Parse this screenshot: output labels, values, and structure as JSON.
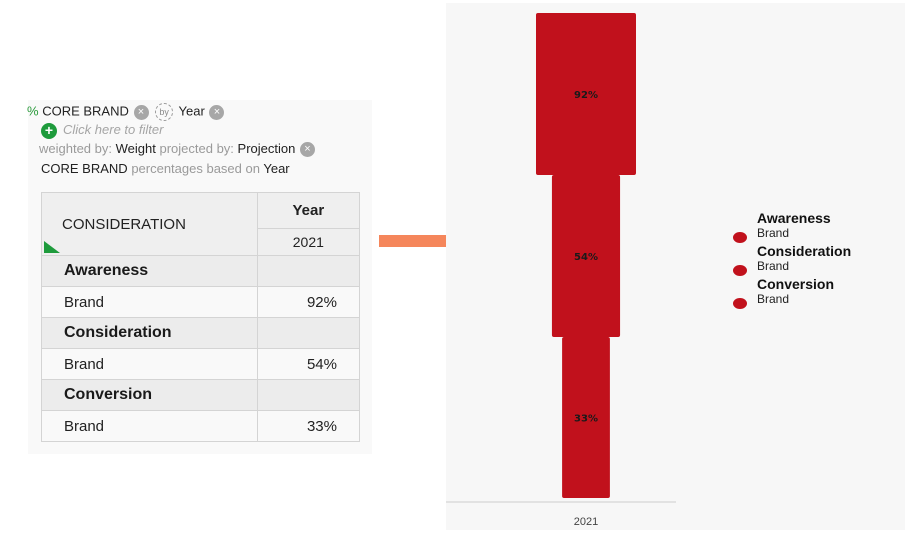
{
  "filters": {
    "pct_symbol": "%",
    "variable": "CORE BRAND",
    "by_label": "by",
    "by_variable": "Year",
    "add_filter_hint": "Click here to filter",
    "weighted_by_prefix": "weighted by:",
    "weight_value": "Weight",
    "projected_by_prefix": "projected by:",
    "projection_value": "Projection",
    "pct_base_var": "CORE BRAND",
    "pct_base_mid": "percentages based on",
    "pct_base_value": "Year"
  },
  "table": {
    "row_header": "CONSIDERATION",
    "col_header": "Year",
    "col_value": "2021",
    "sections": [
      {
        "title": "Awareness",
        "row_label": "Brand",
        "value": "92%"
      },
      {
        "title": "Consideration",
        "row_label": "Brand",
        "value": "54%"
      },
      {
        "title": "Conversion",
        "row_label": "Brand",
        "value": "33%"
      }
    ]
  },
  "chart_data": {
    "type": "bar",
    "subtype": "funnel",
    "categories": [
      "2021"
    ],
    "series": [
      {
        "name": "Awareness Brand",
        "values": [
          92
        ],
        "label": "92%"
      },
      {
        "name": "Consideration Brand",
        "values": [
          54
        ],
        "label": "54%"
      },
      {
        "name": "Conversion Brand",
        "values": [
          33
        ],
        "label": "33%"
      }
    ],
    "color": "#c1111c",
    "legend_position": "right",
    "legend": [
      {
        "title": "Awareness",
        "sub": "Brand"
      },
      {
        "title": "Consideration",
        "sub": "Brand"
      },
      {
        "title": "Conversion",
        "sub": "Brand"
      }
    ],
    "xlabel": "",
    "ylabel": ""
  },
  "colors": {
    "bar": "#c1111c",
    "arrow": "#f5865b",
    "accent_green": "#1e9b3c"
  }
}
